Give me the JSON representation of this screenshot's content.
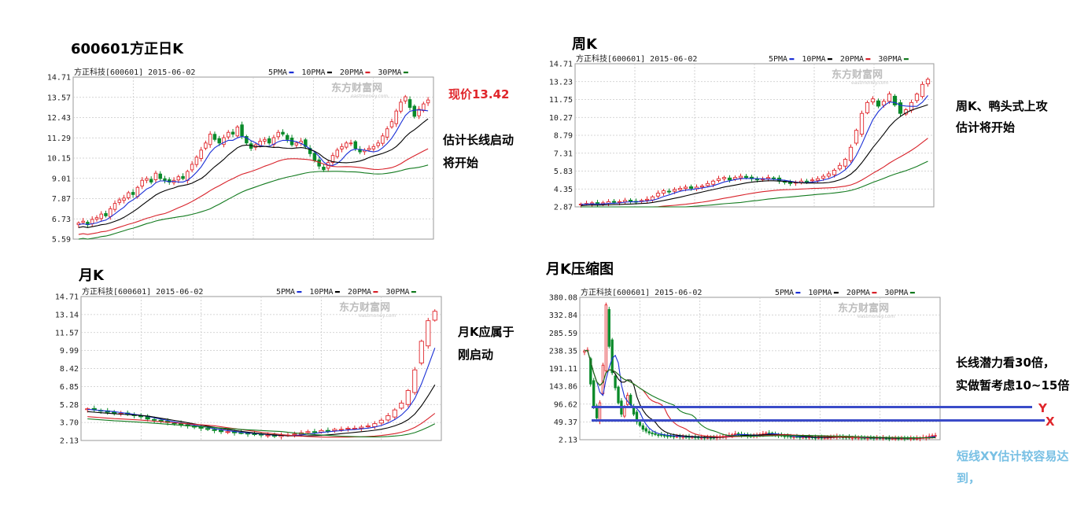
{
  "annotations": {
    "daily_title": "600601方正日K",
    "weekly_title": "周K",
    "monthly_title": "月K",
    "compressed_title": "月K压缩图",
    "price_now": "现价13.42",
    "daily_note_1": "估计长线启动",
    "daily_note_2": "将开始",
    "weekly_note_1": "周K、鸭头式上攻",
    "weekly_note_2": "估计将开始",
    "monthly_note_1": "月K应属于",
    "monthly_note_2": "刚启动",
    "compressed_note_1": "长线潜力看30倍，",
    "compressed_note_2": "实做暂考虑10~15倍",
    "short_note_1": "短线XY估计较容易达",
    "short_note_2": "到，",
    "label_y": "Y",
    "label_x": "X"
  },
  "colors": {
    "up": "#e0262b",
    "down": "#0a8a2a",
    "ma5": "#1a2fd6",
    "ma10": "#000000",
    "ma20": "#d8222a",
    "ma30": "#127a1e",
    "grid": "#c8c8c8",
    "ref_lines": "#3a4bc8",
    "price_note": "#e0262b",
    "short_note": "#78c0e4"
  },
  "watermark": {
    "main": "东方财富网",
    "sub": "eastmoney.com"
  },
  "chart_data": [
    {
      "id": "daily",
      "type": "candlestick",
      "header": "方正科技[600601] 2015-06-02",
      "legend": [
        "5PMA",
        "10PMA",
        "20PMA",
        "30PMA"
      ],
      "y_ticks": [
        "14.71",
        "13.57",
        "12.43",
        "11.29",
        "10.15",
        "9.01",
        "7.87",
        "6.73",
        "5.59"
      ],
      "ylim": [
        5.59,
        14.71
      ],
      "close": [
        6.5,
        6.6,
        6.4,
        6.7,
        6.8,
        7.0,
        6.9,
        7.3,
        7.6,
        7.8,
        7.9,
        8.2,
        8.1,
        8.5,
        8.9,
        9.0,
        8.8,
        9.3,
        9.0,
        8.9,
        8.8,
        8.9,
        9.1,
        9.0,
        9.4,
        9.8,
        10.2,
        10.6,
        11.0,
        11.5,
        11.2,
        11.0,
        11.3,
        11.6,
        11.5,
        11.9,
        11.4,
        11.0,
        10.7,
        10.9,
        11.1,
        11.2,
        11.0,
        11.3,
        11.6,
        11.5,
        11.2,
        10.9,
        11.0,
        11.1,
        10.8,
        10.4,
        10.0,
        9.7,
        9.5,
        9.9,
        10.3,
        10.6,
        10.8,
        11.0,
        11.0,
        10.7,
        10.5,
        10.6,
        10.7,
        10.8,
        11.0,
        11.4,
        11.8,
        12.2,
        12.8,
        13.3,
        13.6,
        13.0,
        12.5,
        12.9,
        13.2,
        13.42
      ]
    },
    {
      "id": "weekly",
      "type": "candlestick",
      "header": "方正科技[600601] 2015-06-02",
      "legend": [
        "5PMA",
        "10PMA",
        "20PMA",
        "30PMA"
      ],
      "y_ticks": [
        "14.71",
        "13.23",
        "11.75",
        "10.27",
        "8.79",
        "7.31",
        "5.83",
        "4.35",
        "2.87"
      ],
      "ylim": [
        2.87,
        14.71
      ],
      "close": [
        3.1,
        3.15,
        3.2,
        3.1,
        3.2,
        3.3,
        3.25,
        3.3,
        3.4,
        3.35,
        3.3,
        3.4,
        3.5,
        3.7,
        4.0,
        4.2,
        4.1,
        4.3,
        4.4,
        4.5,
        4.4,
        4.5,
        4.6,
        4.8,
        5.0,
        5.2,
        5.3,
        5.1,
        5.3,
        5.4,
        5.3,
        5.2,
        5.1,
        5.2,
        5.3,
        5.2,
        5.0,
        4.9,
        4.8,
        4.9,
        5.0,
        5.0,
        5.1,
        5.2,
        5.4,
        5.6,
        5.9,
        6.3,
        6.8,
        7.8,
        9.2,
        10.6,
        11.5,
        11.8,
        11.2,
        11.6,
        12.2,
        11.3,
        10.6,
        10.9,
        11.5,
        12.2,
        13.0,
        13.42
      ]
    },
    {
      "id": "monthly",
      "type": "candlestick",
      "header": "方正科技[600601] 2015-06-02",
      "legend": [
        "5PMA",
        "10PMA",
        "20PMA",
        "30PMA"
      ],
      "y_ticks": [
        "14.71",
        "13.14",
        "11.57",
        "9.99",
        "8.42",
        "6.85",
        "5.28",
        "3.70",
        "2.13"
      ],
      "ylim": [
        2.13,
        14.71
      ],
      "close": [
        4.9,
        4.8,
        4.7,
        4.6,
        4.5,
        4.5,
        4.4,
        4.3,
        4.2,
        4.0,
        3.9,
        3.8,
        3.7,
        3.6,
        3.5,
        3.4,
        3.3,
        3.2,
        3.1,
        3.0,
        2.9,
        2.9,
        2.8,
        2.8,
        2.7,
        2.7,
        2.6,
        2.6,
        2.5,
        2.6,
        2.6,
        2.7,
        2.8,
        2.9,
        2.9,
        3.0,
        3.0,
        3.1,
        3.1,
        3.2,
        3.2,
        3.3,
        3.4,
        3.6,
        3.9,
        4.3,
        4.8,
        5.4,
        6.5,
        8.3,
        10.8,
        12.6,
        13.42
      ]
    },
    {
      "id": "compressed",
      "type": "candlestick",
      "header": "方正科技[600601] 2015-06-02",
      "legend": [
        "5PMA",
        "10PMA",
        "20PMA",
        "30PMA"
      ],
      "y_ticks": [
        "380.08",
        "332.84",
        "285.59",
        "238.35",
        "191.11",
        "143.86",
        "96.62",
        "49.37",
        "2.13"
      ],
      "ylim": [
        2.13,
        380.08
      ],
      "close": [
        238,
        240,
        150,
        90,
        60,
        100,
        200,
        360,
        250,
        180,
        140,
        100,
        70,
        90,
        120,
        95,
        70,
        50,
        40,
        30,
        25,
        20,
        18,
        16,
        15,
        14,
        13,
        12,
        12,
        11,
        11,
        10,
        10,
        10,
        9,
        9,
        9,
        8,
        8,
        8,
        8,
        8,
        8,
        9,
        10,
        11,
        12,
        14,
        16,
        18,
        17,
        15,
        14,
        13,
        12,
        13,
        14,
        16,
        18,
        20,
        19,
        17,
        15,
        14,
        13,
        12,
        11,
        10,
        10,
        10,
        9,
        9,
        9,
        9,
        8,
        8,
        8,
        8,
        8,
        8,
        9,
        10,
        11,
        10,
        9,
        9,
        8,
        8,
        8,
        8,
        7,
        7,
        7,
        7,
        7,
        7,
        7,
        7,
        6,
        6,
        6,
        6,
        6,
        6,
        6,
        6,
        6,
        6,
        6,
        7,
        8,
        9,
        11,
        13,
        13.42
      ],
      "ref_levels": {
        "Y": 96.62,
        "X": 66.0
      }
    }
  ]
}
